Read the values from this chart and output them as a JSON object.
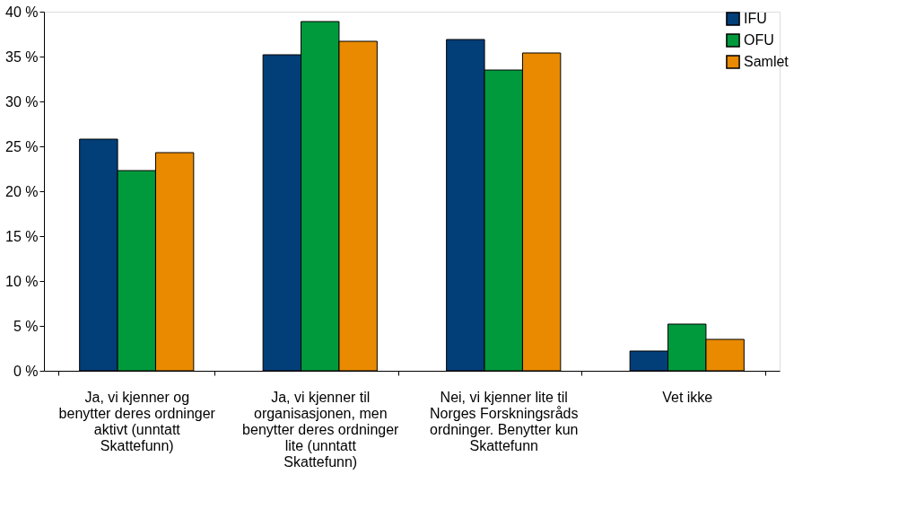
{
  "chart_data": {
    "type": "bar",
    "categories": [
      "Ja, vi kjenner og benytter deres ordninger aktivt (unntatt Skattefunn)",
      "Ja, vi kjenner til organisasjonen, men benytter deres ordninger lite (unntatt Skattefunn)",
      "Nei, vi kjenner lite til Norges Forskningsråds ordninger. Benytter kun Skattefunn",
      "Vet ikke"
    ],
    "series": [
      {
        "name": "IFU",
        "color": "#023e78",
        "values": [
          25.8,
          35.2,
          36.9,
          2.2
        ]
      },
      {
        "name": "OFU",
        "color": "#009a3d",
        "values": [
          22.3,
          38.9,
          33.5,
          5.2
        ]
      },
      {
        "name": "Samlet",
        "color": "#e98a00",
        "values": [
          24.3,
          36.7,
          35.4,
          3.5
        ]
      }
    ],
    "ylim": [
      0,
      40
    ],
    "yticks": [
      {
        "value": 0,
        "label": "0 %"
      },
      {
        "value": 5,
        "label": "5 %"
      },
      {
        "value": 10,
        "label": "10 %"
      },
      {
        "value": 15,
        "label": "15 %"
      },
      {
        "value": 20,
        "label": "20 %"
      },
      {
        "value": 25,
        "label": "25 %"
      },
      {
        "value": 30,
        "label": "30 %"
      },
      {
        "value": 35,
        "label": "35 %"
      },
      {
        "value": 40,
        "label": "40 %"
      }
    ],
    "grid": false,
    "legend": "right"
  }
}
